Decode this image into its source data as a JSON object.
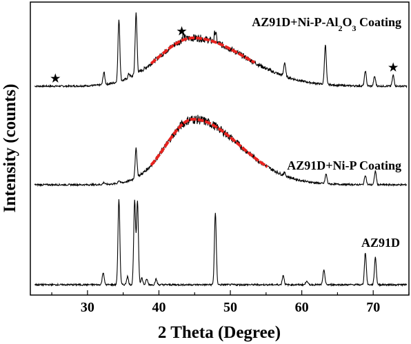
{
  "chart_data": {
    "type": "line",
    "title": "",
    "xlabel": "2 Theta (Degree)",
    "ylabel": "Intensity (counts)",
    "xlim": [
      22,
      75
    ],
    "xticks": [
      30,
      40,
      50,
      60,
      70
    ],
    "y_ticks_shown": false,
    "grid": false,
    "legend": "none (series labelled inline at right)",
    "colors": {
      "pattern": "#000000",
      "fit": "#e8231f"
    },
    "series": [
      {
        "name": "AZ91D+Ni-P-Al2O3 Coating",
        "label_main": "AZ91D+Ni-P-Al",
        "label_sub": "2",
        "label_main2": "O",
        "label_sub2": "3",
        "label_tail": " Coating",
        "baseline": 0.0,
        "hump": {
          "center": 44.8,
          "width": 4.8,
          "height": 70,
          "tail_right": 1.5
        },
        "fit_range": [
          38.9,
          53.5
        ],
        "peaks": [
          {
            "x": 32.3,
            "h": 18
          },
          {
            "x": 34.4,
            "h": 90
          },
          {
            "x": 35.8,
            "h": 6
          },
          {
            "x": 36.8,
            "h": 88
          },
          {
            "x": 43.4,
            "h": 8
          },
          {
            "x": 47.9,
            "h": 16
          },
          {
            "x": 57.6,
            "h": 20
          },
          {
            "x": 63.3,
            "h": 58
          },
          {
            "x": 68.9,
            "h": 22
          },
          {
            "x": 70.2,
            "h": 14
          },
          {
            "x": 72.8,
            "h": 16
          }
        ],
        "markers": [
          25.5,
          43.2,
          72.8
        ]
      },
      {
        "name": "AZ91D+Ni-P Coating",
        "label_main": "AZ91D+Ni-P Coating",
        "baseline": 0.0,
        "hump": {
          "center": 44.8,
          "width": 3.8,
          "height": 95,
          "tail_right": 1.7
        },
        "fit_range": [
          38.9,
          55.3
        ],
        "peaks": [
          {
            "x": 32.3,
            "h": 3
          },
          {
            "x": 34.4,
            "h": 4
          },
          {
            "x": 36.8,
            "h": 42
          },
          {
            "x": 57.6,
            "h": 4
          },
          {
            "x": 63.4,
            "h": 14
          },
          {
            "x": 68.9,
            "h": 14
          },
          {
            "x": 70.3,
            "h": 20
          }
        ],
        "markers": []
      },
      {
        "name": "AZ91D",
        "label_main": "AZ91D",
        "baseline": 0.0,
        "hump": null,
        "fit_range": null,
        "peaks": [
          {
            "x": 32.2,
            "h": 18
          },
          {
            "x": 34.4,
            "h": 124
          },
          {
            "x": 35.6,
            "h": 12
          },
          {
            "x": 36.6,
            "h": 121
          },
          {
            "x": 37.0,
            "h": 121
          },
          {
            "x": 37.6,
            "h": 10
          },
          {
            "x": 38.3,
            "h": 8
          },
          {
            "x": 39.6,
            "h": 8
          },
          {
            "x": 47.9,
            "h": 104
          },
          {
            "x": 57.4,
            "h": 14
          },
          {
            "x": 60.7,
            "h": 6
          },
          {
            "x": 63.1,
            "h": 22
          },
          {
            "x": 68.9,
            "h": 47
          },
          {
            "x": 70.3,
            "h": 40
          }
        ],
        "markers": []
      }
    ]
  }
}
